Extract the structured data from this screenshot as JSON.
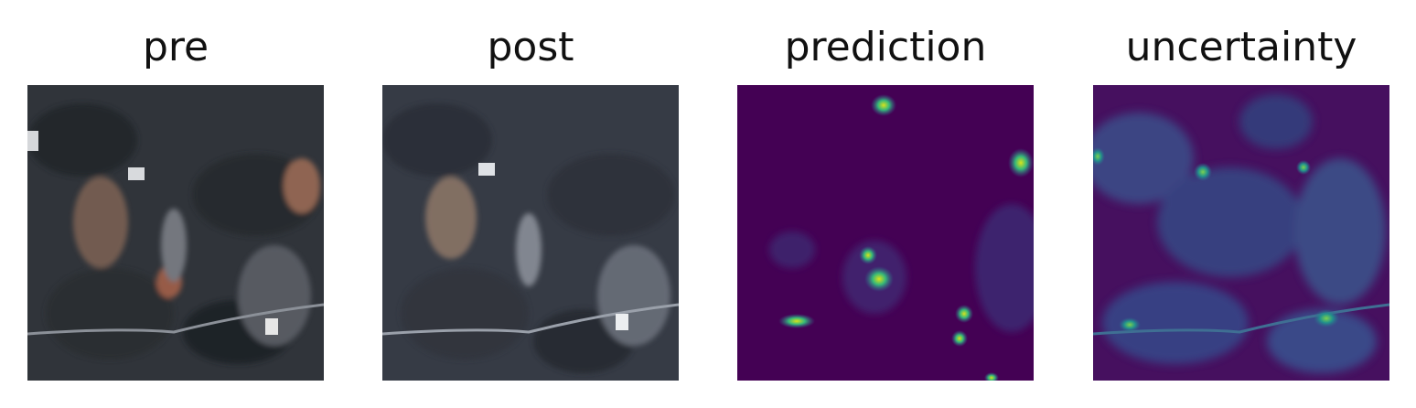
{
  "panels": [
    {
      "title": "pre",
      "kind": "satellite-rgb"
    },
    {
      "title": "post",
      "kind": "satellite-rgb"
    },
    {
      "title": "prediction",
      "kind": "heatmap"
    },
    {
      "title": "uncertainty",
      "kind": "heatmap"
    }
  ],
  "colors": {
    "satellite_base": "#2f3338",
    "post_base": "#353a44",
    "viridis_low": "#440154",
    "viridis_mid": "#2b6f8e",
    "viridis_high": "#cde11d"
  }
}
